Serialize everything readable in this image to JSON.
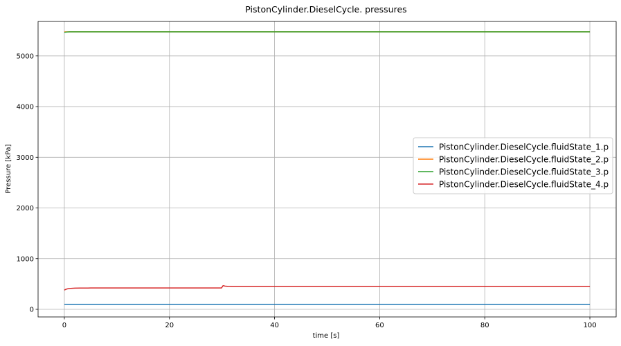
{
  "chart_data": {
    "type": "line",
    "title": "PistonCylinder.DieselCycle. pressures",
    "xlabel": "time [s]",
    "ylabel": "Pressure [kPa]",
    "xlim": [
      -5,
      105
    ],
    "ylim": [
      -150,
      5680
    ],
    "xticks": [
      0,
      20,
      40,
      60,
      80,
      100
    ],
    "yticks": [
      0,
      1000,
      2000,
      3000,
      4000,
      5000
    ],
    "grid": true,
    "legend_position": "center-right",
    "series": [
      {
        "name": "PistonCylinder.DieselCycle.fluidState_1.p",
        "color": "#1f77b4",
        "x": [
          0,
          100
        ],
        "y": [
          100,
          100
        ]
      },
      {
        "name": "PistonCylinder.DieselCycle.fluidState_2.p",
        "color": "#ff7f0e",
        "x": [
          0,
          100
        ],
        "y": [
          5475,
          5475
        ]
      },
      {
        "name": "PistonCylinder.DieselCycle.fluidState_3.p",
        "color": "#2ca02c",
        "x": [
          0,
          0.5,
          1,
          100
        ],
        "y": [
          5465,
          5472,
          5475,
          5475
        ]
      },
      {
        "name": "PistonCylinder.DieselCycle.fluidState_4.p",
        "color": "#d62728",
        "x": [
          0,
          0.3,
          0.7,
          1.2,
          2,
          3,
          5,
          10,
          20,
          29.9,
          30.2,
          30.6,
          31.2,
          32,
          40,
          60,
          80,
          100
        ],
        "y": [
          380,
          395,
          407,
          414,
          418,
          420,
          421,
          421,
          421,
          421,
          468,
          458,
          452,
          449,
          449,
          449,
          449,
          449
        ]
      }
    ]
  }
}
